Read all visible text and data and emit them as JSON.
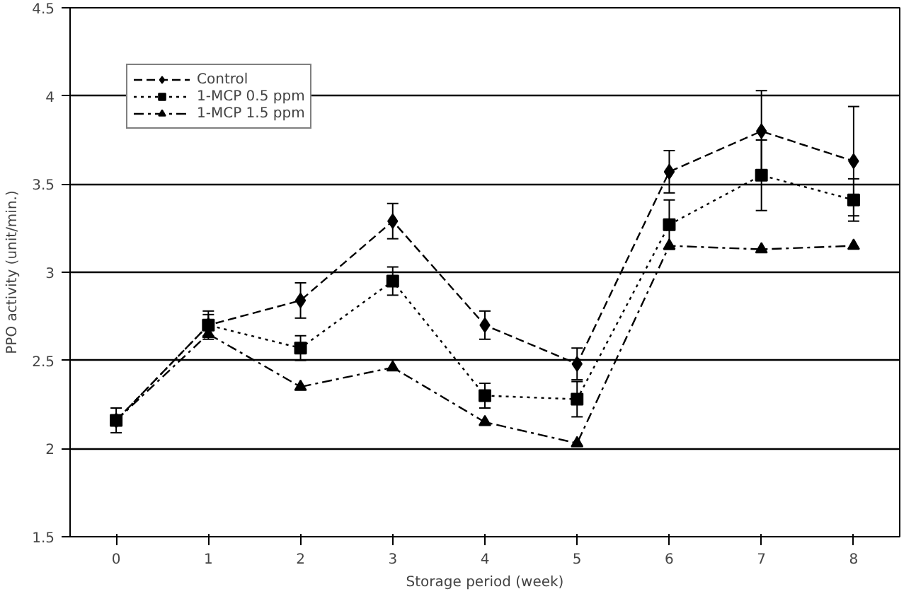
{
  "chart_data": {
    "type": "line",
    "xlabel": "Storage period (week)",
    "ylabel": "PPO activity (unit/min.)",
    "categories": [
      "0",
      "1",
      "2",
      "3",
      "4",
      "5",
      "6",
      "7",
      "8"
    ],
    "ylim": [
      1.5,
      4.5
    ],
    "yticks": [
      1.5,
      2,
      2.5,
      3,
      3.5,
      4,
      4.5
    ],
    "grid": "y",
    "legend": "top left",
    "series": [
      {
        "name": "Control",
        "color": "#000000",
        "marker": "diamond",
        "line_style": "dashed",
        "values": [
          2.16,
          2.7,
          2.84,
          3.29,
          2.7,
          2.48,
          3.57,
          3.8,
          3.63
        ],
        "errors": [
          0.07,
          0.08,
          0.1,
          0.1,
          0.08,
          0.09,
          0.12,
          0.23,
          0.31
        ]
      },
      {
        "name": "1-MCP 0.5 ppm",
        "color": "#000000",
        "marker": "square",
        "line_style": "dotted",
        "values": [
          2.16,
          2.7,
          2.57,
          2.95,
          2.3,
          2.28,
          3.27,
          3.55,
          3.41
        ],
        "errors": [
          null,
          0.06,
          0.07,
          0.08,
          0.07,
          0.1,
          0.14,
          0.2,
          0.12
        ]
      },
      {
        "name": "1-MCP 1.5 ppm",
        "color": "#000000",
        "marker": "triangle",
        "line_style": "dashdot",
        "values": [
          2.16,
          2.65,
          2.35,
          2.46,
          2.15,
          2.03,
          3.15,
          3.13,
          3.15
        ]
      }
    ]
  }
}
